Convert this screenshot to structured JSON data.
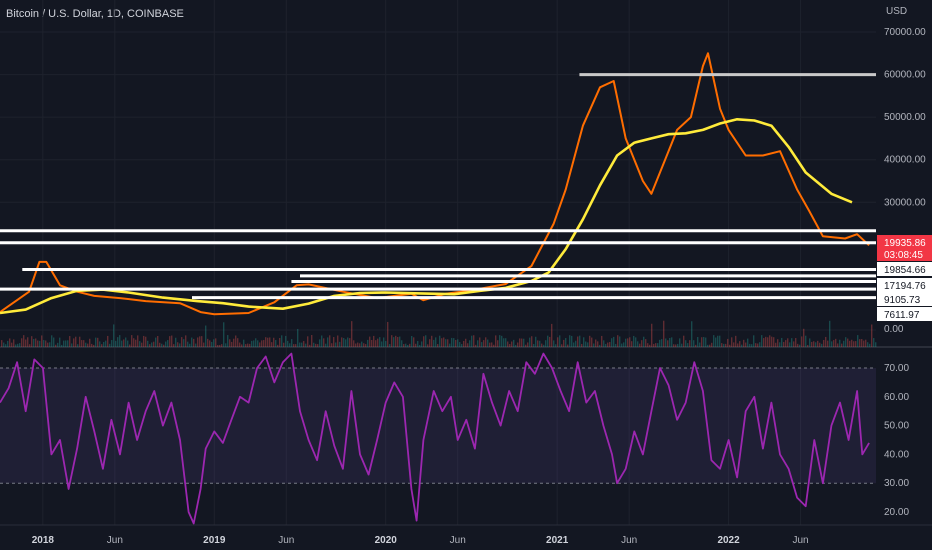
{
  "header": {
    "title": "Bitcoin / U.S. Dollar, 1D, COINBASE",
    "currency": "USD"
  },
  "chart_data": [
    {
      "type": "line",
      "title": "Bitcoin / U.S. Dollar, 1D, COINBASE",
      "ylabel": "USD",
      "ylim": [
        0,
        70000
      ],
      "x_ticks": [
        {
          "t": 2018.0,
          "label": "2018",
          "bold": true
        },
        {
          "t": 2018.42,
          "label": "Jun",
          "bold": false
        },
        {
          "t": 2019.0,
          "label": "2019",
          "bold": true
        },
        {
          "t": 2019.42,
          "label": "Jun",
          "bold": false
        },
        {
          "t": 2020.0,
          "label": "2020",
          "bold": true
        },
        {
          "t": 2020.42,
          "label": "Jun",
          "bold": false
        },
        {
          "t": 2021.0,
          "label": "2021",
          "bold": true
        },
        {
          "t": 2021.42,
          "label": "Jun",
          "bold": false
        },
        {
          "t": 2022.0,
          "label": "2022",
          "bold": true
        },
        {
          "t": 2022.42,
          "label": "Jun",
          "bold": false
        }
      ],
      "y_ticks": [
        "0.00",
        "10000.00",
        "20000.00",
        "30000.00",
        "40000.00",
        "50000.00",
        "60000.00",
        "70000.00"
      ],
      "y_tick_values": [
        0,
        10000,
        20000,
        30000,
        40000,
        50000,
        60000,
        70000
      ],
      "series": [
        {
          "color": "#ff6d00",
          "points": [
            [
              2017.75,
              4200
            ],
            [
              2017.92,
              9000
            ],
            [
              2017.98,
              16000
            ],
            [
              2018.02,
              16000
            ],
            [
              2018.1,
              10500
            ],
            [
              2018.2,
              9000
            ],
            [
              2018.3,
              8000
            ],
            [
              2018.45,
              7500
            ],
            [
              2018.6,
              6800
            ],
            [
              2018.8,
              6300
            ],
            [
              2018.92,
              4200
            ],
            [
              2019.0,
              3700
            ],
            [
              2019.2,
              4000
            ],
            [
              2019.35,
              6500
            ],
            [
              2019.48,
              10500
            ],
            [
              2019.55,
              10700
            ],
            [
              2019.75,
              9000
            ],
            [
              2019.95,
              7500
            ],
            [
              2020.15,
              8500
            ],
            [
              2020.22,
              7000
            ],
            [
              2020.35,
              8500
            ],
            [
              2020.5,
              9300
            ],
            [
              2020.7,
              10800
            ],
            [
              2020.85,
              15000
            ],
            [
              2020.98,
              25000
            ],
            [
              2021.05,
              33000
            ],
            [
              2021.15,
              48000
            ],
            [
              2021.25,
              57000
            ],
            [
              2021.33,
              58500
            ],
            [
              2021.4,
              45000
            ],
            [
              2021.5,
              35000
            ],
            [
              2021.55,
              32000
            ],
            [
              2021.62,
              39000
            ],
            [
              2021.7,
              47000
            ],
            [
              2021.78,
              50000
            ],
            [
              2021.85,
              62000
            ],
            [
              2021.88,
              65000
            ],
            [
              2021.95,
              52000
            ],
            [
              2022.0,
              47000
            ],
            [
              2022.1,
              41000
            ],
            [
              2022.2,
              41000
            ],
            [
              2022.3,
              42000
            ],
            [
              2022.4,
              33000
            ],
            [
              2022.47,
              28000
            ],
            [
              2022.55,
              22000
            ],
            [
              2022.68,
              21500
            ],
            [
              2022.75,
              22500
            ],
            [
              2022.82,
              19900
            ]
          ]
        },
        {
          "color": "#ffeb3b",
          "points": [
            [
              2017.75,
              4000
            ],
            [
              2017.9,
              4800
            ],
            [
              2018.05,
              7500
            ],
            [
              2018.2,
              9200
            ],
            [
              2018.35,
              9500
            ],
            [
              2018.5,
              8800
            ],
            [
              2018.7,
              7600
            ],
            [
              2018.9,
              6800
            ],
            [
              2019.05,
              6300
            ],
            [
              2019.2,
              5500
            ],
            [
              2019.4,
              5000
            ],
            [
              2019.55,
              6200
            ],
            [
              2019.7,
              8000
            ],
            [
              2019.85,
              8700
            ],
            [
              2020.0,
              8800
            ],
            [
              2020.2,
              8600
            ],
            [
              2020.4,
              8400
            ],
            [
              2020.55,
              9200
            ],
            [
              2020.7,
              9900
            ],
            [
              2020.85,
              11500
            ],
            [
              2020.95,
              13500
            ],
            [
              2021.05,
              19000
            ],
            [
              2021.15,
              26000
            ],
            [
              2021.25,
              34000
            ],
            [
              2021.35,
              41000
            ],
            [
              2021.45,
              44000
            ],
            [
              2021.55,
              45000
            ],
            [
              2021.65,
              46000
            ],
            [
              2021.75,
              46200
            ],
            [
              2021.85,
              47000
            ],
            [
              2021.95,
              48500
            ],
            [
              2022.05,
              49500
            ],
            [
              2022.15,
              49200
            ],
            [
              2022.25,
              48000
            ],
            [
              2022.35,
              43000
            ],
            [
              2022.45,
              37000
            ],
            [
              2022.6,
              32000
            ],
            [
              2022.72,
              30000
            ]
          ]
        }
      ],
      "hlines": [
        {
          "value": 60000,
          "t_start": 2021.13,
          "color": "#c9c9c9"
        },
        {
          "value": 23300,
          "t_start": 2017.65,
          "color": "#ffffff"
        },
        {
          "value": 20500,
          "t_start": 2017.65,
          "color": "#ffffff"
        },
        {
          "value": 14200,
          "t_start": 2017.88,
          "color": "#ffffff"
        },
        {
          "value": 12700,
          "t_start": 2019.5,
          "color": "#ffffff"
        },
        {
          "value": 11400,
          "t_start": 2019.45,
          "color": "#ffffff"
        },
        {
          "value": 9600,
          "t_start": 2017.72,
          "color": "#ffffff"
        },
        {
          "value": 7600,
          "t_start": 2018.87,
          "color": "#ffffff"
        }
      ],
      "price_labels": [
        {
          "value": 19935.86,
          "label": "19935.86",
          "sublabel": "03:08:45",
          "color": "#f23645"
        },
        {
          "value": 19854.66,
          "label": "19854.66",
          "color": "#ffffff"
        },
        {
          "value": 17194.76,
          "label": "17194.76",
          "color": "#ffffff"
        },
        {
          "value": 9105.73,
          "label": "9105.73",
          "color": "#ffffff"
        },
        {
          "value": 7611.97,
          "label": "7611.97",
          "color": "#ffffff"
        },
        {
          "value": 0,
          "label": "0.00",
          "color": "none"
        }
      ]
    },
    {
      "type": "line",
      "title": "",
      "ylim": [
        13,
        76
      ],
      "y_ticks": [
        "20.00",
        "30.00",
        "40.00",
        "50.00",
        "60.00",
        "70.00"
      ],
      "y_tick_values": [
        20,
        30,
        40,
        50,
        60,
        70
      ],
      "bands": [
        70,
        30
      ],
      "series": [
        {
          "color": "#9c27b0",
          "points": [
            [
              2017.75,
              58
            ],
            [
              2017.8,
              63
            ],
            [
              2017.85,
              72
            ],
            [
              2017.9,
              55
            ],
            [
              2017.95,
              73
            ],
            [
              2018.0,
              70
            ],
            [
              2018.05,
              40
            ],
            [
              2018.1,
              45
            ],
            [
              2018.15,
              28
            ],
            [
              2018.2,
              42
            ],
            [
              2018.25,
              60
            ],
            [
              2018.3,
              48
            ],
            [
              2018.35,
              35
            ],
            [
              2018.4,
              52
            ],
            [
              2018.45,
              40
            ],
            [
              2018.5,
              58
            ],
            [
              2018.55,
              45
            ],
            [
              2018.6,
              55
            ],
            [
              2018.65,
              62
            ],
            [
              2018.7,
              50
            ],
            [
              2018.75,
              58
            ],
            [
              2018.8,
              45
            ],
            [
              2018.85,
              20
            ],
            [
              2018.88,
              16
            ],
            [
              2018.92,
              28
            ],
            [
              2018.95,
              42
            ],
            [
              2019.0,
              48
            ],
            [
              2019.05,
              44
            ],
            [
              2019.1,
              52
            ],
            [
              2019.15,
              60
            ],
            [
              2019.2,
              58
            ],
            [
              2019.25,
              70
            ],
            [
              2019.3,
              74
            ],
            [
              2019.35,
              65
            ],
            [
              2019.4,
              72
            ],
            [
              2019.45,
              75
            ],
            [
              2019.5,
              55
            ],
            [
              2019.55,
              45
            ],
            [
              2019.6,
              38
            ],
            [
              2019.65,
              55
            ],
            [
              2019.7,
              43
            ],
            [
              2019.75,
              35
            ],
            [
              2019.8,
              62
            ],
            [
              2019.85,
              40
            ],
            [
              2019.9,
              33
            ],
            [
              2019.95,
              45
            ],
            [
              2020.0,
              58
            ],
            [
              2020.05,
              65
            ],
            [
              2020.1,
              60
            ],
            [
              2020.15,
              28
            ],
            [
              2020.18,
              17
            ],
            [
              2020.22,
              45
            ],
            [
              2020.28,
              62
            ],
            [
              2020.33,
              55
            ],
            [
              2020.38,
              60
            ],
            [
              2020.42,
              45
            ],
            [
              2020.47,
              52
            ],
            [
              2020.52,
              42
            ],
            [
              2020.57,
              68
            ],
            [
              2020.62,
              58
            ],
            [
              2020.67,
              50
            ],
            [
              2020.72,
              62
            ],
            [
              2020.77,
              55
            ],
            [
              2020.82,
              72
            ],
            [
              2020.87,
              68
            ],
            [
              2020.92,
              75
            ],
            [
              2020.97,
              70
            ],
            [
              2021.02,
              62
            ],
            [
              2021.07,
              55
            ],
            [
              2021.12,
              72
            ],
            [
              2021.17,
              58
            ],
            [
              2021.22,
              62
            ],
            [
              2021.27,
              50
            ],
            [
              2021.32,
              40
            ],
            [
              2021.35,
              30
            ],
            [
              2021.4,
              35
            ],
            [
              2021.45,
              48
            ],
            [
              2021.5,
              40
            ],
            [
              2021.55,
              55
            ],
            [
              2021.6,
              70
            ],
            [
              2021.65,
              64
            ],
            [
              2021.7,
              52
            ],
            [
              2021.75,
              58
            ],
            [
              2021.8,
              72
            ],
            [
              2021.85,
              62
            ],
            [
              2021.9,
              38
            ],
            [
              2021.95,
              35
            ],
            [
              2022.0,
              45
            ],
            [
              2022.05,
              32
            ],
            [
              2022.1,
              55
            ],
            [
              2022.15,
              60
            ],
            [
              2022.2,
              42
            ],
            [
              2022.25,
              58
            ],
            [
              2022.3,
              40
            ],
            [
              2022.35,
              35
            ],
            [
              2022.4,
              25
            ],
            [
              2022.45,
              22
            ],
            [
              2022.5,
              45
            ],
            [
              2022.55,
              30
            ],
            [
              2022.6,
              50
            ],
            [
              2022.65,
              58
            ],
            [
              2022.7,
              45
            ],
            [
              2022.75,
              62
            ],
            [
              2022.78,
              40
            ],
            [
              2022.82,
              44
            ]
          ]
        }
      ]
    }
  ]
}
